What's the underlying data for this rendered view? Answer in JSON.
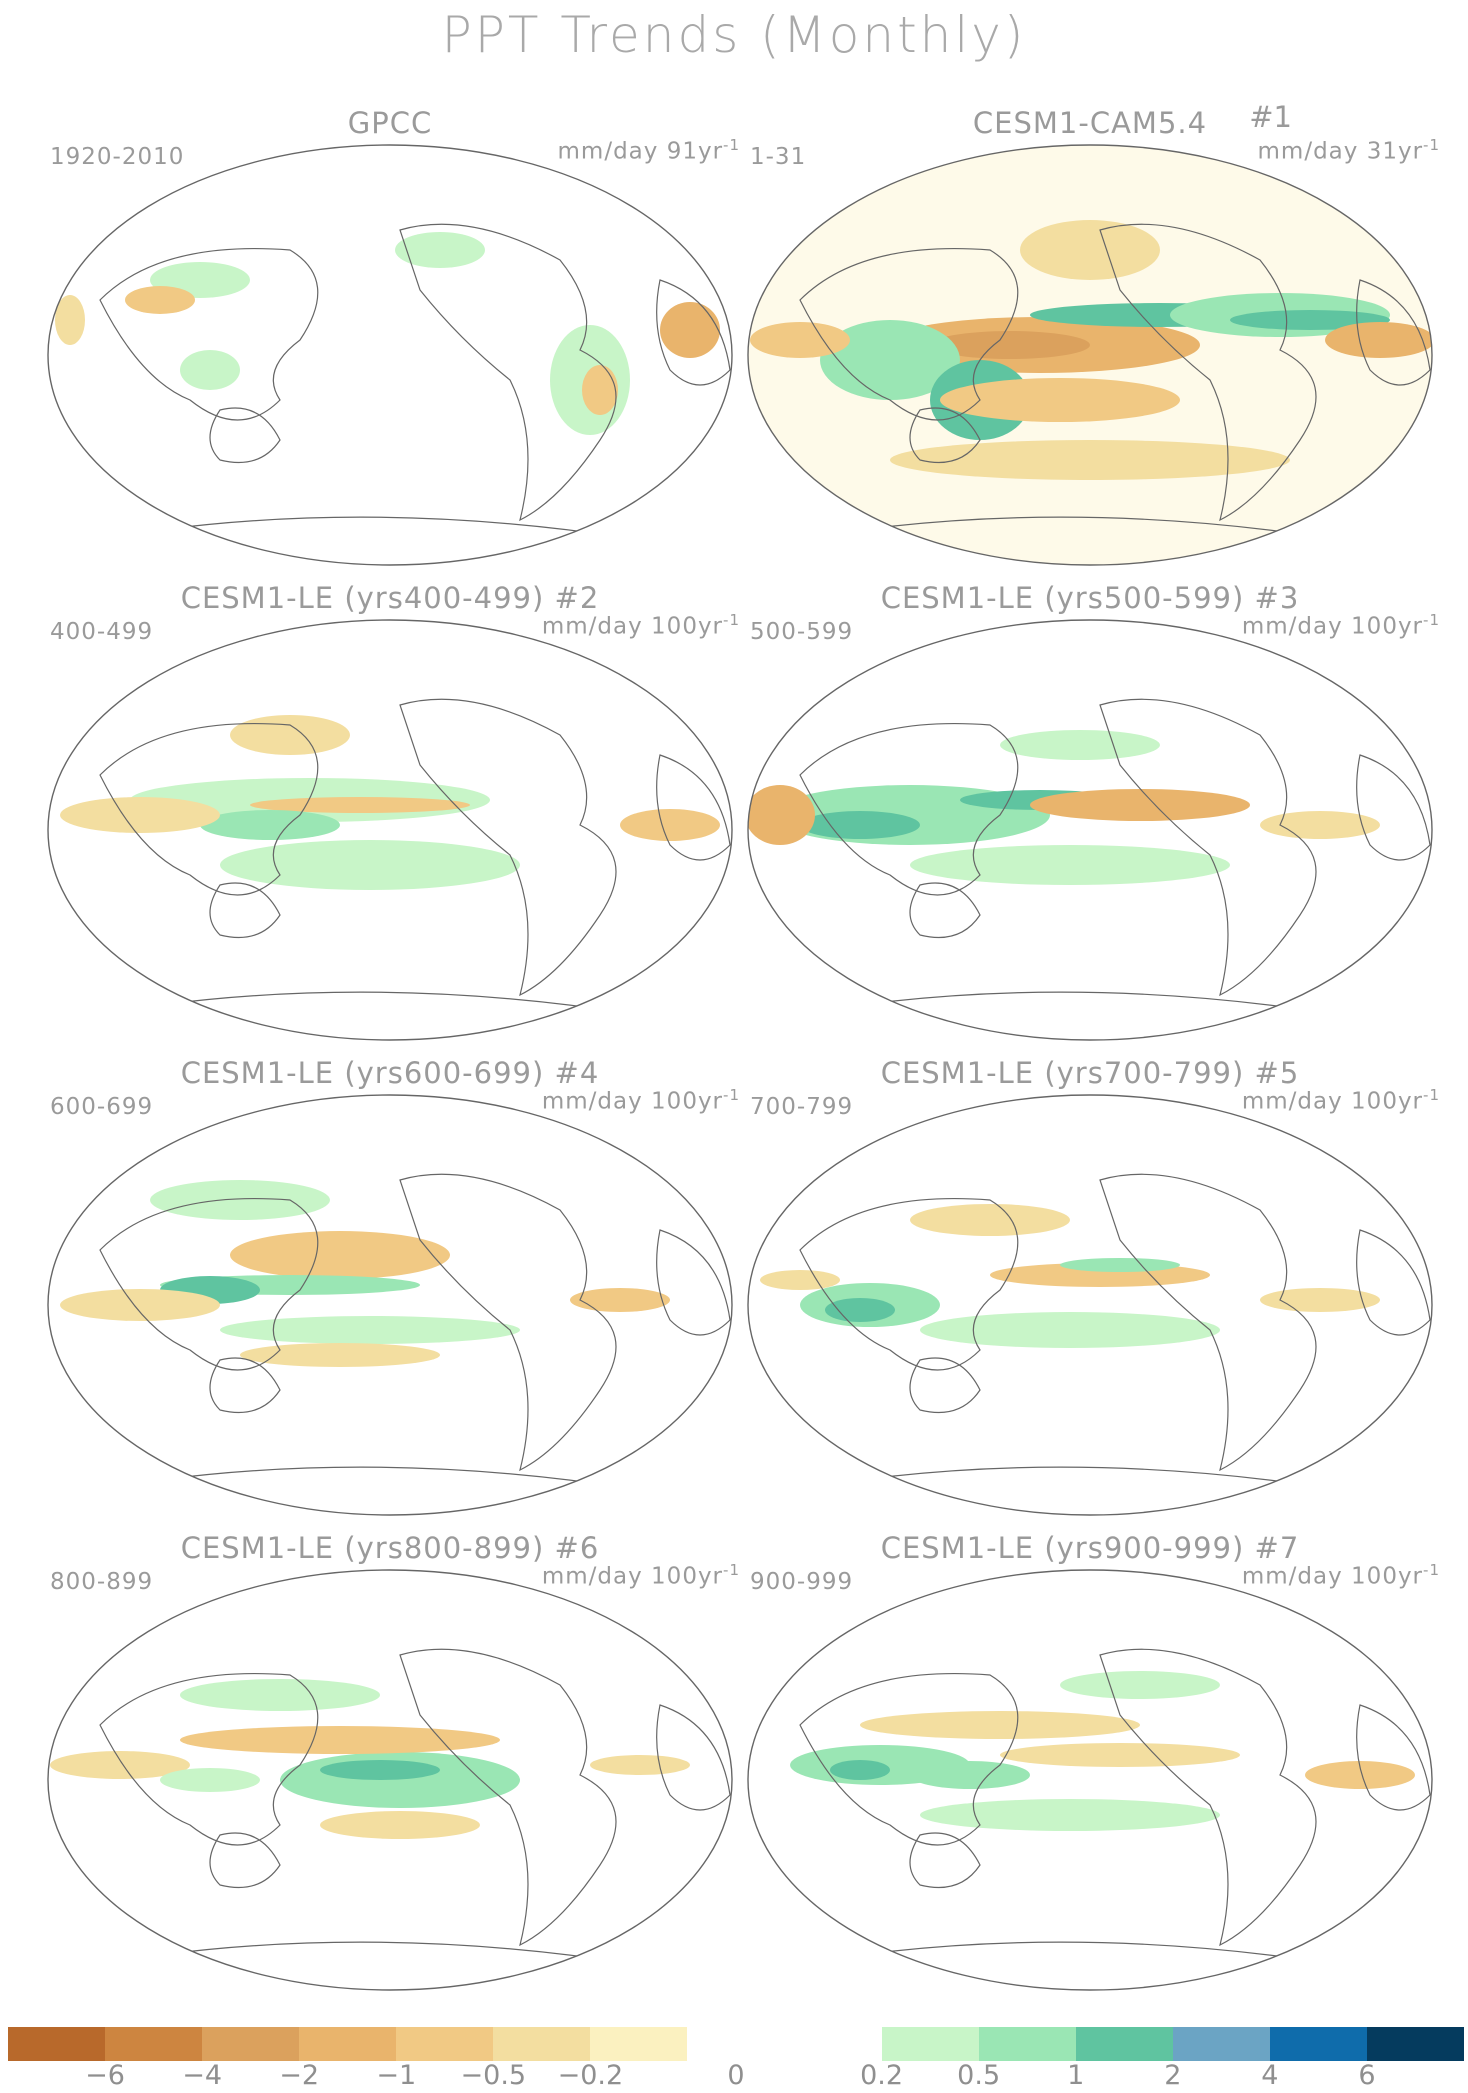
{
  "title": "PPT Trends (Monthly)",
  "panels": [
    {
      "title": "GPCC",
      "number": "",
      "period": "1920-2010",
      "units": "mm/day 91yr",
      "units_sup": "-1"
    },
    {
      "title": "CESM1-CAM5.4",
      "number": "#1",
      "period": "1-31",
      "units": "mm/day 31yr",
      "units_sup": "-1"
    },
    {
      "title": "CESM1-LE (yrs400-499)",
      "number": "#2",
      "period": "400-499",
      "units": "mm/day 100yr",
      "units_sup": "-1"
    },
    {
      "title": "CESM1-LE (yrs500-599)",
      "number": "#3",
      "period": "500-599",
      "units": "mm/day 100yr",
      "units_sup": "-1"
    },
    {
      "title": "CESM1-LE (yrs600-699)",
      "number": "#4",
      "period": "600-699",
      "units": "mm/day 100yr",
      "units_sup": "-1"
    },
    {
      "title": "CESM1-LE (yrs700-799)",
      "number": "#5",
      "period": "700-799",
      "units": "mm/day 100yr",
      "units_sup": "-1"
    },
    {
      "title": "CESM1-LE (yrs800-899)",
      "number": "#6",
      "period": "800-899",
      "units": "mm/day 100yr",
      "units_sup": "-1"
    },
    {
      "title": "CESM1-LE (yrs900-999)",
      "number": "#7",
      "period": "900-999",
      "units": "mm/day 100yr",
      "units_sup": "-1"
    }
  ],
  "colorbar": {
    "colors": [
      "#b8692b",
      "#cd8540",
      "#dba15d",
      "#e9b46c",
      "#f1c984",
      "#f3dea0",
      "#fbf1c0",
      "#ffffff",
      "#ffffff",
      "#c8f5c8",
      "#9ae6b4",
      "#5fc4a0",
      "#6ba4c4",
      "#0f6cab",
      "#053b5e"
    ],
    "labels": [
      "−6",
      "−4",
      "−2",
      "−1",
      "−0.5",
      "−0.2",
      "0",
      "0.2",
      "0.5",
      "1",
      "2",
      "4",
      "6"
    ]
  }
}
